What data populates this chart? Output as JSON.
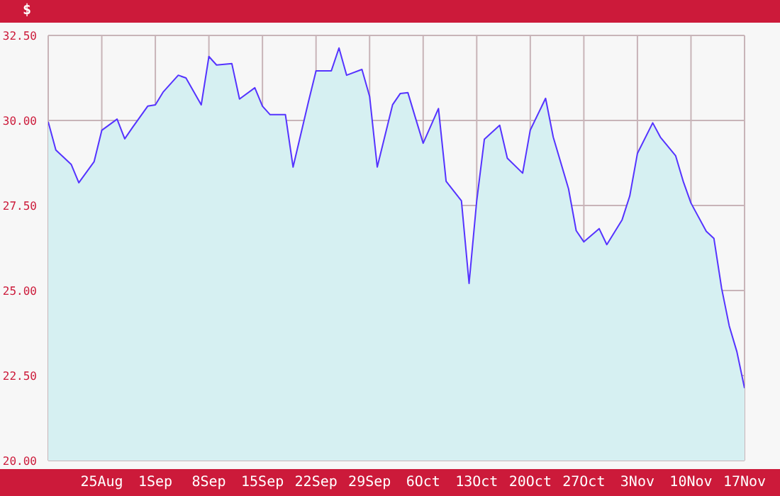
{
  "chart_data": {
    "type": "area",
    "ylabel": "$",
    "x": [
      "--08-18",
      "--08-19",
      "--08-21",
      "--08-22",
      "--08-24",
      "--08-25",
      "--08-27",
      "--08-28",
      "--08-29",
      "--08-31",
      "--09-01",
      "--09-02",
      "--09-04",
      "--09-05",
      "--09-07",
      "--09-08",
      "--09-09",
      "--09-11",
      "--09-12",
      "--09-14",
      "--09-15",
      "--09-16",
      "--09-18",
      "--09-19",
      "--09-21",
      "--09-22",
      "--09-24",
      "--09-25",
      "--09-26",
      "--09-28",
      "--09-29",
      "--09-30",
      "--10-02",
      "--10-03",
      "--10-04",
      "--10-05",
      "--10-06",
      "--10-08",
      "--10-09",
      "--10-11",
      "--10-12",
      "--10-13",
      "--10-14",
      "--10-16",
      "--10-17",
      "--10-19",
      "--10-20",
      "--10-22",
      "--10-23",
      "--10-25",
      "--10-26",
      "--10-27",
      "--10-29",
      "--10-30",
      "--11-01",
      "--11-02",
      "--11-03",
      "--11-05",
      "--11-06",
      "--11-08",
      "--11-09",
      "--11-10",
      "--11-12",
      "--11-13",
      "--11-14",
      "--11-15",
      "--11-16",
      "--11-17"
    ],
    "series": [
      {
        "color": "#5533ff",
        "values": [
          29.96,
          29.13,
          28.71,
          28.17,
          28.79,
          29.71,
          30.04,
          29.46,
          29.79,
          30.42,
          30.46,
          30.83,
          31.33,
          31.25,
          30.46,
          31.88,
          31.63,
          31.67,
          30.63,
          30.96,
          30.42,
          30.17,
          30.17,
          28.63,
          30.54,
          31.46,
          31.46,
          32.13,
          31.33,
          31.5,
          30.71,
          28.63,
          30.46,
          30.79,
          30.82,
          30.07,
          29.33,
          30.35,
          28.21,
          27.64,
          25.21,
          27.64,
          29.45,
          29.86,
          28.89,
          28.45,
          29.72,
          30.65,
          29.51,
          27.99,
          26.76,
          26.43,
          26.82,
          26.35,
          27.08,
          27.78,
          29.03,
          29.93,
          29.51,
          28.96,
          28.2,
          27.57,
          26.74,
          26.53,
          25.07,
          23.96,
          23.2,
          22.13
        ]
      }
    ],
    "xlim": [
      "--08-18",
      "--11-17"
    ],
    "xticks": [
      {
        "value": "--08-25",
        "label": "25Aug"
      },
      {
        "value": "--09-01",
        "label": "1Sep"
      },
      {
        "value": "--09-08",
        "label": "8Sep"
      },
      {
        "value": "--09-15",
        "label": "15Sep"
      },
      {
        "value": "--09-22",
        "label": "22Sep"
      },
      {
        "value": "--09-29",
        "label": "29Sep"
      },
      {
        "value": "--10-06",
        "label": "6Oct"
      },
      {
        "value": "--10-13",
        "label": "13Oct"
      },
      {
        "value": "--10-20",
        "label": "20Oct"
      },
      {
        "value": "--10-27",
        "label": "27Oct"
      },
      {
        "value": "--11-03",
        "label": "3Nov"
      },
      {
        "value": "--11-10",
        "label": "10Nov"
      },
      {
        "value": "--11-17",
        "label": "17Nov"
      }
    ],
    "ylim": [
      20,
      32.5
    ],
    "yticks": [
      {
        "value": 20,
        "label": "20.00"
      },
      {
        "value": 22.5,
        "label": "22.50"
      },
      {
        "value": 25,
        "label": "25.00"
      },
      {
        "value": 27.5,
        "label": "27.50"
      },
      {
        "value": 30,
        "label": "30.00"
      },
      {
        "value": 32.5,
        "label": "32.50"
      }
    ],
    "grid": true,
    "legend": false,
    "marker": "none",
    "line_style": "solid"
  }
}
